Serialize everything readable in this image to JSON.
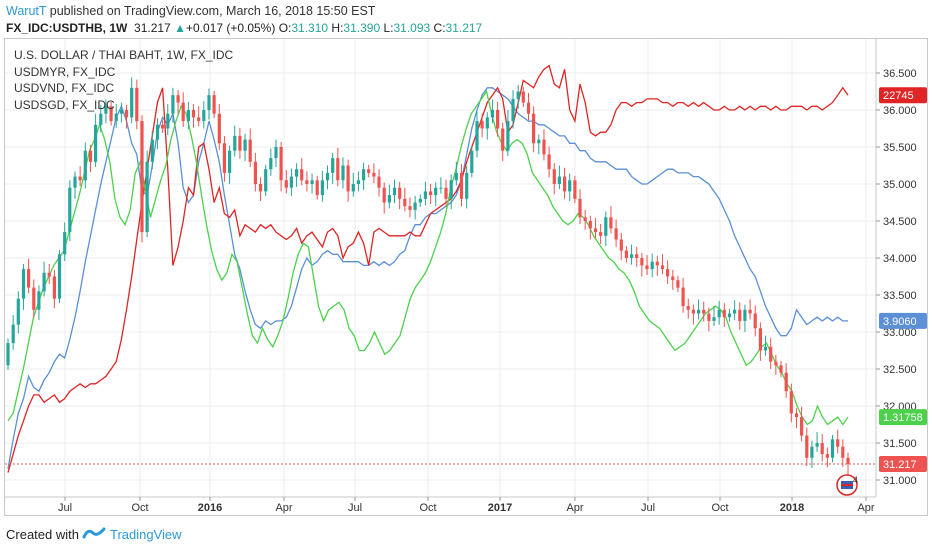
{
  "header": {
    "author": "WarutT",
    "published_text": " published on TradingView.com, March 16, 2018 15:50 EST",
    "symbol": "FX_IDC:USDTHB, 1W",
    "last": "31.217",
    "change_arrow": "▲",
    "change": "+0.017 (+0.05%)",
    "o_label": "O:",
    "o": "31.310",
    "h_label": "H:",
    "h": "31.390",
    "l_label": "L:",
    "l": "31.093",
    "c_label": "C:",
    "c": "31.217"
  },
  "legend": {
    "main": "U.S. DOLLAR / THAI BAHT, 1W, FX_IDC",
    "s1": "USDMYR, FX_IDC",
    "s2": "USDVND, FX_IDC",
    "s3": "USDSGD, FX_IDC"
  },
  "footer": {
    "created_with": "Created with",
    "brand": "TradingView"
  },
  "badges": {
    "vnd": "22745",
    "myr": "3.9060",
    "sgd": "1.31758",
    "thb": "31.217"
  },
  "corner_marker": "4",
  "colors": {
    "up": "#26a69a",
    "down": "#ef5350",
    "myr": "#5b8fd6",
    "vnd": "#e02424",
    "sgd": "#4dd14d",
    "grid": "#e8eef2"
  },
  "chart_data": {
    "type": "candlestick",
    "title": "U.S. DOLLAR / THAI BAHT, 1W, FX_IDC",
    "y_ticks": [
      "36.500",
      "36.000",
      "35.500",
      "35.000",
      "34.500",
      "34.000",
      "33.500",
      "33.000",
      "32.500",
      "32.000",
      "31.500",
      "31.000"
    ],
    "x_ticks": [
      {
        "label": "Jul",
        "bold": false
      },
      {
        "label": "Oct",
        "bold": false
      },
      {
        "label": "2016",
        "bold": true
      },
      {
        "label": "Apr",
        "bold": false
      },
      {
        "label": "Jul",
        "bold": false
      },
      {
        "label": "Oct",
        "bold": false
      },
      {
        "label": "2017",
        "bold": true
      },
      {
        "label": "Apr",
        "bold": false
      },
      {
        "label": "Jul",
        "bold": false
      },
      {
        "label": "Oct",
        "bold": false
      },
      {
        "label": "2018",
        "bold": true
      },
      {
        "label": "Apr",
        "bold": false
      }
    ],
    "ylim": [
      30.9,
      36.75
    ],
    "last_close": 31.217,
    "thb_close": [
      32.85,
      33.1,
      33.45,
      33.85,
      33.6,
      33.3,
      33.55,
      33.8,
      33.75,
      33.45,
      34.05,
      34.35,
      34.95,
      35.1,
      35.05,
      35.45,
      35.3,
      35.8,
      35.95,
      36.05,
      35.85,
      35.95,
      36.0,
      35.9,
      36.3,
      35.85,
      34.35,
      35.3,
      35.6,
      35.8,
      35.75,
      35.95,
      36.2,
      36.1,
      35.85,
      36.0,
      35.9,
      35.85,
      36.0,
      36.2,
      35.95,
      35.55,
      35.15,
      35.45,
      35.65,
      35.45,
      35.6,
      35.3,
      35.0,
      34.9,
      35.2,
      35.35,
      35.5,
      35.05,
      34.95,
      35.1,
      35.2,
      35.05,
      35.0,
      35.05,
      34.85,
      35.05,
      35.15,
      35.35,
      35.05,
      35.25,
      34.9,
      35.0,
      35.05,
      35.2,
      35.15,
      35.1,
      34.95,
      34.75,
      34.85,
      34.95,
      34.8,
      34.7,
      34.65,
      34.75,
      34.8,
      34.9,
      34.85,
      34.95,
      34.95,
      34.8,
      35.05,
      35.15,
      34.8,
      35.15,
      35.45,
      35.85,
      35.75,
      35.9,
      36.0,
      35.75,
      35.45,
      35.85,
      36.15,
      36.25,
      36.1,
      35.95,
      35.55,
      35.6,
      35.4,
      35.2,
      35.0,
      35.1,
      34.9,
      35.05,
      34.8,
      34.55,
      34.5,
      34.4,
      34.35,
      34.3,
      34.55,
      34.4,
      34.25,
      34.1,
      34.0,
      34.05,
      34.0,
      33.9,
      33.85,
      33.95,
      33.9,
      33.85,
      33.75,
      33.7,
      33.6,
      33.35,
      33.3,
      33.25,
      33.3,
      33.25,
      33.15,
      33.2,
      33.3,
      33.2,
      33.25,
      33.3,
      33.15,
      33.3,
      33.25,
      33.05,
      32.75,
      32.8,
      32.6,
      32.55,
      32.45,
      32.2,
      31.9,
      31.85,
      31.6,
      31.3,
      31.45,
      31.5,
      31.35,
      31.3,
      31.55,
      31.45,
      31.3,
      31.217
    ],
    "series": [
      {
        "name": "USDMYR, FX_IDC",
        "last_label": "3.9060",
        "values": [
          31.15,
          31.55,
          31.9,
          32.1,
          32.4,
          32.25,
          32.2,
          32.35,
          32.45,
          32.6,
          32.7,
          32.65,
          32.9,
          33.2,
          33.55,
          33.95,
          34.3,
          34.65,
          35.0,
          35.3,
          35.6,
          35.9,
          36.05,
          35.85,
          35.55,
          35.4,
          34.9,
          34.85,
          35.25,
          35.7,
          35.9,
          35.8,
          35.95,
          35.55,
          34.95,
          34.75,
          34.85,
          35.3,
          35.55,
          35.85,
          35.6,
          35.3,
          34.85,
          34.45,
          34.05,
          33.85,
          33.55,
          33.3,
          33.1,
          33.05,
          33.15,
          33.1,
          33.15,
          33.15,
          33.2,
          33.35,
          33.6,
          33.85,
          34.0,
          33.9,
          33.95,
          34.05,
          34.1,
          34.05,
          34.05,
          33.95,
          33.95,
          33.95,
          33.95,
          33.9,
          33.9,
          33.95,
          33.9,
          33.95,
          33.9,
          33.95,
          34.05,
          34.1,
          34.3,
          34.45,
          34.45,
          34.55,
          34.6,
          34.6,
          34.65,
          34.7,
          34.75,
          34.85,
          35.05,
          35.4,
          35.75,
          36.0,
          36.2,
          36.3,
          36.3,
          36.25,
          36.2,
          36.15,
          36.05,
          35.95,
          35.9,
          35.85,
          35.85,
          35.8,
          35.8,
          35.75,
          35.7,
          35.65,
          35.65,
          35.55,
          35.55,
          35.45,
          35.45,
          35.35,
          35.3,
          35.3,
          35.3,
          35.25,
          35.2,
          35.2,
          35.2,
          35.1,
          35.05,
          35.0,
          35.0,
          35.05,
          35.1,
          35.15,
          35.2,
          35.2,
          35.15,
          35.15,
          35.15,
          35.1,
          35.1,
          35.05,
          35.0,
          34.9,
          34.8,
          34.65,
          34.5,
          34.3,
          34.15,
          34.0,
          33.85,
          33.75,
          33.55,
          33.35,
          33.2,
          33.05,
          32.95,
          32.95,
          33.05,
          33.3,
          33.2,
          33.1,
          33.15,
          33.2,
          33.15,
          33.2,
          33.15,
          33.2,
          33.15,
          33.15
        ]
      },
      {
        "name": "USDVND, FX_IDC",
        "last_label": "22745",
        "values": [
          31.1,
          31.35,
          31.6,
          31.8,
          32.0,
          32.15,
          32.15,
          32.05,
          32.1,
          32.15,
          32.05,
          32.1,
          32.2,
          32.25,
          32.3,
          32.25,
          32.3,
          32.3,
          32.35,
          32.4,
          32.5,
          32.6,
          32.9,
          33.3,
          33.75,
          34.25,
          34.75,
          35.2,
          35.65,
          36.1,
          36.3,
          35.2,
          33.9,
          34.15,
          34.5,
          34.95,
          34.85,
          35.5,
          35.55,
          35.2,
          34.75,
          34.95,
          34.6,
          34.55,
          34.65,
          34.3,
          34.45,
          34.4,
          34.35,
          34.45,
          34.4,
          34.45,
          34.35,
          34.3,
          34.25,
          34.3,
          34.4,
          34.2,
          34.3,
          34.35,
          34.25,
          34.15,
          34.35,
          34.4,
          34.3,
          34.0,
          34.15,
          34.2,
          34.35,
          34.2,
          33.9,
          34.35,
          34.4,
          34.35,
          34.3,
          34.3,
          34.3,
          34.3,
          34.35,
          34.3,
          34.3,
          34.45,
          34.6,
          34.65,
          34.7,
          34.75,
          34.8,
          34.9,
          35.05,
          35.3,
          35.5,
          35.7,
          35.9,
          36.1,
          36.2,
          36.3,
          36.15,
          35.7,
          35.8,
          36.1,
          36.4,
          36.35,
          36.3,
          36.45,
          36.55,
          36.6,
          36.35,
          36.3,
          36.55,
          36.0,
          35.85,
          36.35,
          36.1,
          35.7,
          35.65,
          35.7,
          35.7,
          35.8,
          36.0,
          36.1,
          36.1,
          36.05,
          36.1,
          36.1,
          36.15,
          36.15,
          36.15,
          36.1,
          36.1,
          36.05,
          36.1,
          36.1,
          36.05,
          36.1,
          36.05,
          36.1,
          36.05,
          36.0,
          36.0,
          36.05,
          36.0,
          36.0,
          36.05,
          36.0,
          36.05,
          36.0,
          36.05,
          36.05,
          36.0,
          36.05,
          36.0,
          36.0,
          36.05,
          36.05,
          36.05,
          36.0,
          36.05,
          36.05,
          36.0,
          36.05,
          36.1,
          36.2,
          36.3,
          36.2
        ]
      },
      {
        "name": "USDSGD, FX_IDC",
        "last_label": "1.31758",
        "values": [
          31.8,
          31.9,
          32.2,
          32.5,
          32.85,
          33.2,
          33.4,
          33.6,
          33.75,
          33.9,
          34.0,
          34.1,
          34.35,
          34.6,
          34.85,
          35.15,
          35.45,
          35.6,
          35.8,
          35.6,
          35.3,
          34.8,
          34.55,
          34.45,
          34.65,
          35.15,
          35.3,
          34.9,
          34.55,
          34.8,
          35.05,
          35.25,
          35.6,
          35.85,
          36.05,
          35.95,
          35.65,
          35.3,
          34.85,
          34.45,
          34.1,
          33.85,
          33.7,
          33.8,
          34.05,
          33.95,
          33.6,
          33.25,
          32.95,
          32.85,
          33.05,
          32.9,
          32.8,
          32.95,
          33.15,
          33.45,
          33.8,
          34.05,
          34.2,
          34.15,
          33.75,
          33.35,
          33.15,
          33.3,
          33.35,
          33.4,
          33.3,
          33.05,
          32.95,
          32.75,
          32.75,
          32.85,
          33.0,
          32.85,
          32.7,
          32.75,
          32.85,
          32.95,
          33.2,
          33.45,
          33.6,
          33.7,
          33.8,
          33.95,
          34.15,
          34.35,
          34.6,
          34.95,
          35.2,
          35.5,
          35.75,
          35.95,
          36.05,
          36.15,
          36.25,
          35.95,
          35.7,
          35.55,
          35.45,
          35.55,
          35.6,
          35.55,
          35.4,
          35.15,
          35.05,
          34.95,
          34.85,
          34.7,
          34.6,
          34.5,
          34.45,
          34.5,
          34.6,
          34.55,
          34.45,
          34.3,
          34.2,
          34.1,
          34.0,
          33.95,
          33.85,
          33.8,
          33.7,
          33.55,
          33.35,
          33.25,
          33.15,
          33.1,
          33.05,
          32.95,
          32.85,
          32.75,
          32.8,
          32.85,
          32.95,
          33.05,
          33.15,
          33.25,
          33.3,
          33.35,
          33.3,
          33.2,
          33.0,
          32.85,
          32.7,
          32.55,
          32.6,
          32.7,
          32.8,
          32.85,
          32.7,
          32.55,
          32.45,
          32.3,
          32.2,
          32.0,
          31.85,
          31.75,
          31.8,
          32.0,
          31.85,
          31.75,
          31.8,
          31.85,
          31.75,
          31.85
        ]
      }
    ]
  }
}
